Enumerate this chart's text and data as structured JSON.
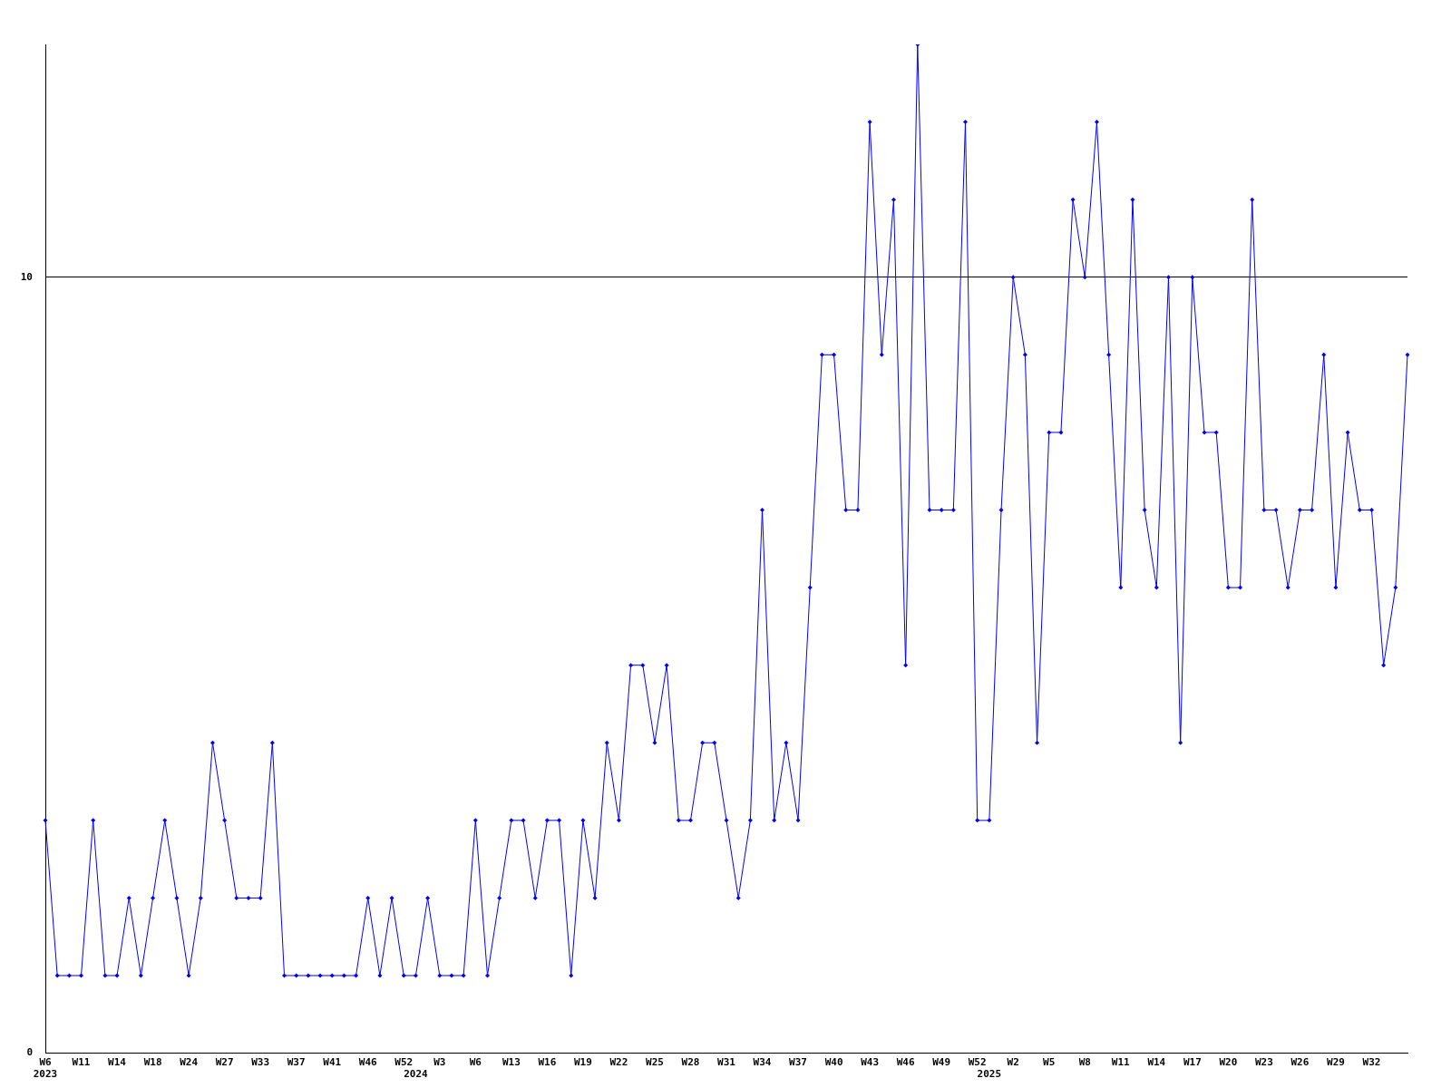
{
  "chart_data": {
    "type": "line",
    "categories": [
      "W6\n2023",
      null,
      null,
      "W11",
      null,
      null,
      "W14",
      null,
      null,
      "W18",
      null,
      null,
      "W24",
      null,
      null,
      "W27",
      null,
      null,
      "W33",
      null,
      null,
      "W37",
      null,
      null,
      "W41",
      null,
      null,
      "W46",
      null,
      null,
      "W52",
      "\n2024",
      null,
      "W3",
      null,
      null,
      "W6",
      null,
      null,
      "W13",
      null,
      null,
      "W16",
      null,
      null,
      "W19",
      null,
      null,
      "W22",
      null,
      null,
      "W25",
      null,
      null,
      "W28",
      null,
      null,
      "W31",
      null,
      null,
      "W34",
      null,
      null,
      "W37",
      null,
      null,
      "W40",
      null,
      null,
      "W43",
      null,
      null,
      "W46",
      null,
      null,
      "W49",
      null,
      null,
      "W52",
      "\n2025",
      null,
      "W2",
      null,
      null,
      "W5",
      null,
      null,
      "W8",
      null,
      null,
      "W11",
      null,
      null,
      "W14",
      null,
      null,
      "W17",
      null,
      null,
      "W20",
      null,
      null,
      "W23",
      null,
      null,
      "W26",
      null,
      null,
      "W29",
      null,
      null,
      "W32",
      null,
      null,
      null
    ],
    "series": [
      {
        "color": "#0000ff",
        "values": [
          3,
          1,
          1,
          1,
          3,
          1,
          1,
          2,
          1,
          2,
          3,
          2,
          1,
          2,
          4,
          3,
          2,
          2,
          2,
          4,
          1,
          1,
          1,
          1,
          1,
          1,
          1,
          2,
          1,
          2,
          1,
          1,
          2,
          1,
          1,
          1,
          3,
          1,
          2,
          3,
          3,
          2,
          3,
          3,
          1,
          3,
          2,
          4,
          3,
          5,
          5,
          4,
          5,
          3,
          3,
          4,
          4,
          3,
          2,
          3,
          7,
          3,
          4,
          3,
          6,
          9,
          9,
          7,
          7,
          12,
          9,
          11,
          5,
          13,
          7,
          7,
          7,
          12,
          3,
          3,
          7,
          10,
          9,
          4,
          8,
          8,
          11,
          10,
          12,
          9,
          6,
          11,
          7,
          6,
          10,
          4,
          10,
          8,
          8,
          6,
          6,
          11,
          7,
          7,
          6,
          7,
          7,
          9,
          6,
          8,
          7,
          7,
          5,
          6,
          9
        ]
      }
    ],
    "ylim": [
      0,
      13
    ],
    "yticks": [
      0,
      10
    ],
    "grid": "y",
    "marker": "diamond",
    "line_style": "solid",
    "legend": false
  }
}
